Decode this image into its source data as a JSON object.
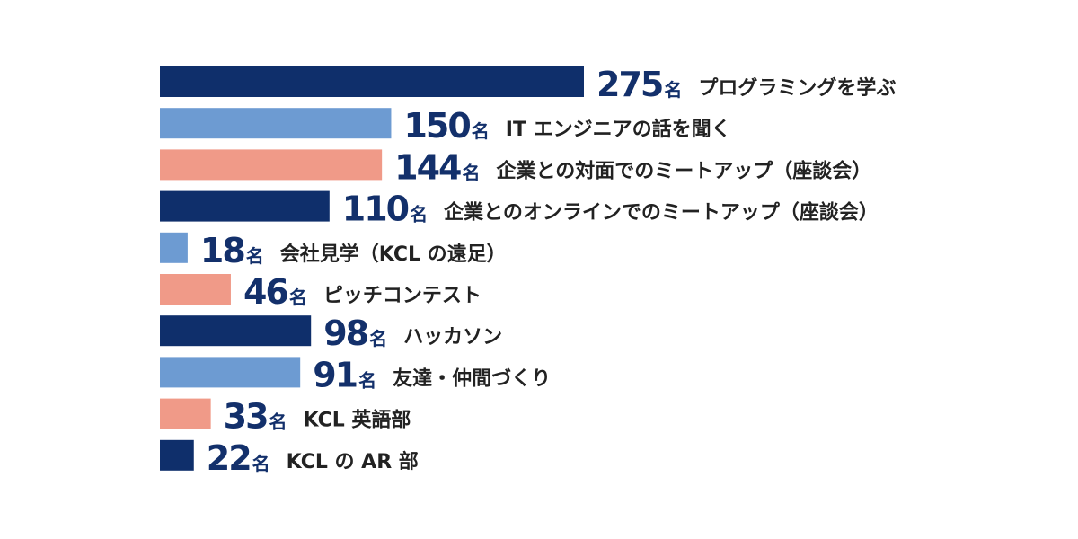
{
  "chart_data": {
    "type": "bar",
    "orientation": "horizontal",
    "unit": "名",
    "categories": [
      "プログラミングを学ぶ",
      "IT エンジニアの話を聞く",
      "企業との対面でのミートアップ（座談会）",
      "企業とのオンラインでのミートアップ（座談会）",
      "会社見学（KCL の遠足）",
      "ピッチコンテスト",
      "ハッカソン",
      "友達・仲間づくり",
      "KCL 英語部",
      "KCL の AR 部"
    ],
    "values": [
      275,
      150,
      144,
      110,
      18,
      46,
      98,
      91,
      33,
      22
    ],
    "colors": [
      "#0f2f6b",
      "#6d9bd2",
      "#f09a88",
      "#0f2f6b",
      "#6d9bd2",
      "#f09a88",
      "#0f2f6b",
      "#6d9bd2",
      "#f09a88",
      "#0f2f6b"
    ]
  }
}
